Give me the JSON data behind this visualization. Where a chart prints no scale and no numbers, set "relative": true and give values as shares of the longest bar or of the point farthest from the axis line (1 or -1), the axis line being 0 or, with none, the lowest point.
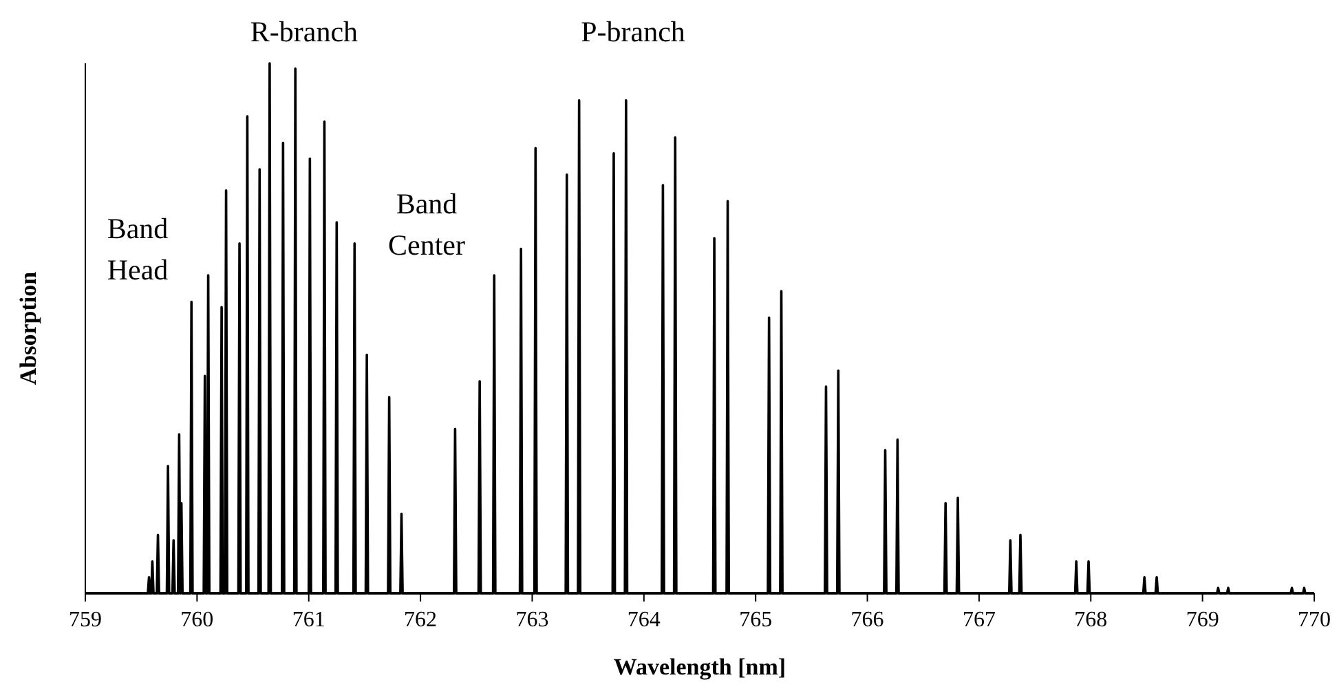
{
  "chart_data": {
    "type": "line",
    "xlabel": "Wavelength [nm]",
    "ylabel": "Absorption",
    "relative": true,
    "xlim": [
      759,
      770
    ],
    "xticks": [
      759,
      760,
      761,
      762,
      763,
      764,
      765,
      766,
      767,
      768,
      769,
      770
    ],
    "grid": false,
    "marker": "none",
    "line_style": "solid",
    "annotations": [
      "R-branch",
      "P-branch",
      "Band Head",
      "Band Center"
    ],
    "series": [
      {
        "color": "#000000",
        "x": [
          759,
          759.56,
          759.57,
          759.58,
          759.59,
          759.6,
          759.61,
          759.64,
          759.65,
          759.66,
          759.73,
          759.74,
          759.75,
          759.78,
          759.79,
          759.8,
          759.83,
          759.84,
          759.85,
          759.85,
          759.86,
          759.87,
          759.94,
          759.95,
          759.96,
          760.06,
          760.07,
          760.08,
          760.09,
          760.1,
          760.11,
          760.21,
          760.22,
          760.23,
          760.25,
          760.26,
          760.27,
          760.37,
          760.38,
          760.39,
          760.44,
          760.45,
          760.46,
          760.55,
          760.56,
          760.57,
          760.64,
          760.65,
          760.66,
          760.76,
          760.77,
          760.78,
          760.87,
          760.88,
          760.89,
          761,
          761.01,
          761.02,
          761.13,
          761.14,
          761.15,
          761.24,
          761.25,
          761.26,
          761.4,
          761.41,
          761.42,
          761.51,
          761.52,
          761.53,
          761.71,
          761.72,
          761.73,
          761.82,
          761.83,
          761.84,
          762.3,
          762.31,
          762.32,
          762.52,
          762.53,
          762.54,
          762.65,
          762.66,
          762.67,
          762.89,
          762.9,
          762.91,
          763.02,
          763.03,
          763.04,
          763.3,
          763.31,
          763.32,
          763.41,
          763.42,
          763.43,
          763.72,
          763.73,
          763.74,
          763.83,
          763.84,
          763.85,
          764.16,
          764.17,
          764.18,
          764.27,
          764.28,
          764.29,
          764.62,
          764.63,
          764.64,
          764.74,
          764.75,
          764.76,
          765.11,
          765.12,
          765.13,
          765.22,
          765.23,
          765.24,
          765.62,
          765.63,
          765.64,
          765.73,
          765.74,
          765.75,
          766.15,
          766.16,
          766.17,
          766.26,
          766.27,
          766.28,
          766.69,
          766.7,
          766.71,
          766.8,
          766.81,
          766.82,
          767.27,
          767.28,
          767.29,
          767.36,
          767.37,
          767.38,
          767.86,
          767.87,
          767.88,
          767.97,
          767.98,
          767.99,
          768.47,
          768.48,
          768.49,
          768.58,
          768.59,
          768.6,
          769.13,
          769.14,
          769.15,
          769.22,
          769.23,
          769.24,
          769.79,
          769.8,
          769.81,
          769.9,
          769.91,
          769.92,
          770
        ],
        "values": [
          0,
          0,
          0.03,
          0,
          0,
          0.06,
          0,
          0,
          0.11,
          0,
          0,
          0.24,
          0,
          0,
          0.1,
          0,
          0,
          0.3,
          0,
          0,
          0.17,
          0,
          0,
          0.55,
          0,
          0,
          0.41,
          0,
          0,
          0.6,
          0,
          0,
          0.54,
          0,
          0,
          0.76,
          0,
          0,
          0.66,
          0,
          0,
          0.9,
          0,
          0,
          0.8,
          0,
          0,
          1,
          0,
          0,
          0.85,
          0,
          0,
          0.99,
          0,
          0,
          0.82,
          0,
          0,
          0.89,
          0,
          0,
          0.7,
          0,
          0,
          0.66,
          0,
          0,
          0.45,
          0,
          0,
          0.37,
          0,
          0,
          0.15,
          0,
          0,
          0.31,
          0,
          0,
          0.4,
          0,
          0,
          0.6,
          0,
          0,
          0.65,
          0,
          0,
          0.84,
          0,
          0,
          0.79,
          0,
          0,
          0.93,
          0,
          0,
          0.83,
          0,
          0,
          0.93,
          0,
          0,
          0.77,
          0,
          0,
          0.86,
          0,
          0,
          0.67,
          0,
          0,
          0.74,
          0,
          0,
          0.52,
          0,
          0,
          0.57,
          0,
          0,
          0.39,
          0,
          0,
          0.42,
          0,
          0,
          0.27,
          0,
          0,
          0.29,
          0,
          0,
          0.17,
          0,
          0,
          0.18,
          0,
          0,
          0.1,
          0,
          0,
          0.11,
          0,
          0,
          0.06,
          0,
          0,
          0.06,
          0,
          0,
          0.03,
          0,
          0,
          0.03,
          0,
          0,
          0.01,
          0,
          0,
          0.01,
          0,
          0,
          0.01,
          0,
          0,
          0.01,
          0,
          0
        ]
      }
    ]
  }
}
